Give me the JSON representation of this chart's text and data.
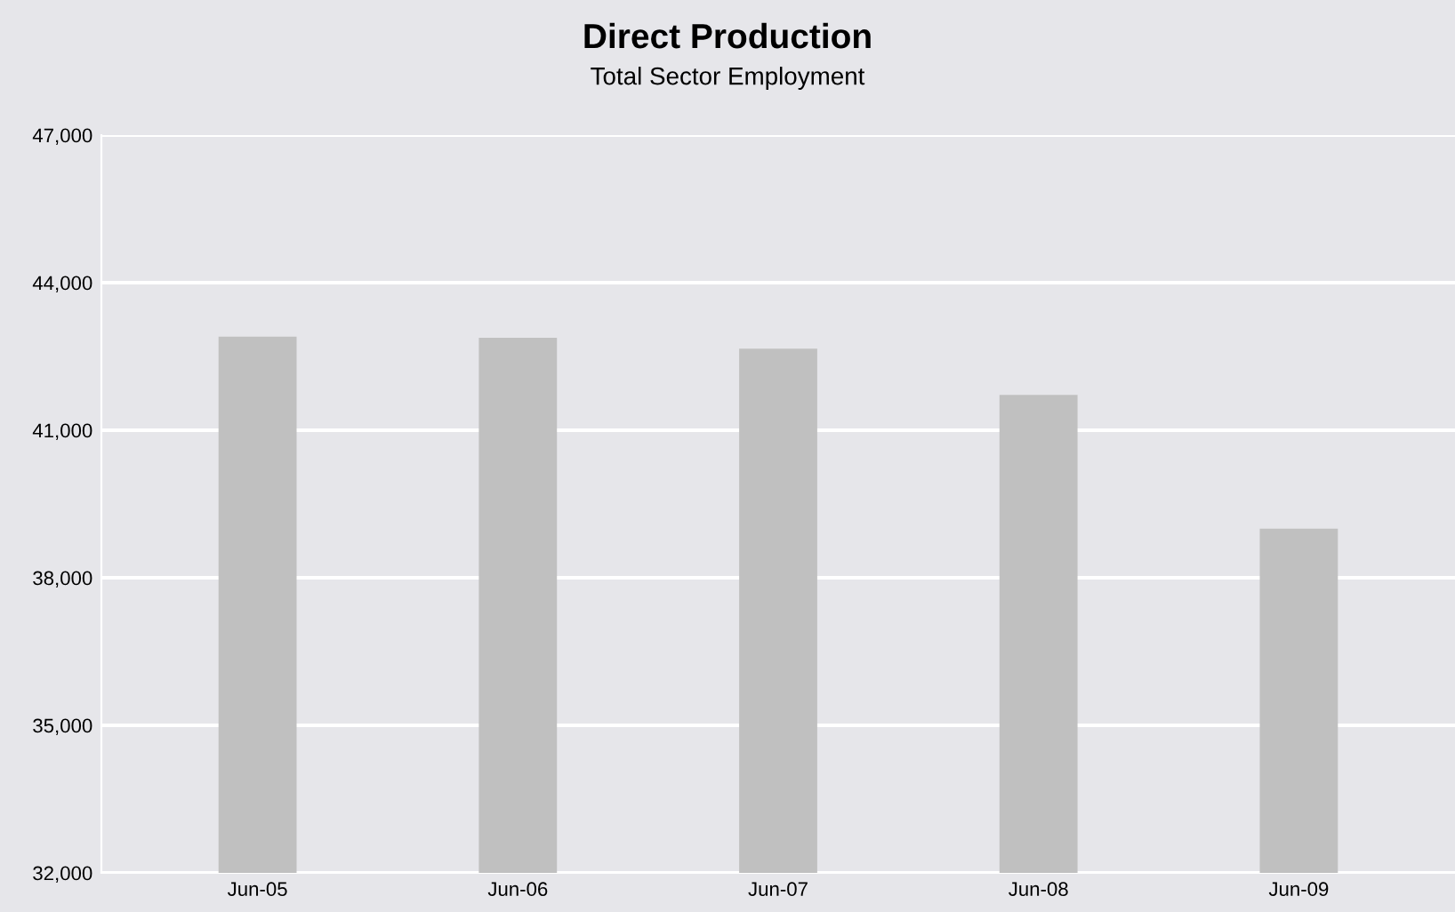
{
  "chart_data": {
    "type": "bar",
    "title": "Direct Production",
    "subtitle": "Total Sector Employment",
    "categories": [
      "Jun-05",
      "Jun-06",
      "Jun-07",
      "Jun-08",
      "Jun-09"
    ],
    "values": [
      42900,
      42880,
      42660,
      41720,
      39000
    ],
    "color": "#c0c0c0",
    "ylim": [
      32000,
      47000
    ],
    "yticks": [
      {
        "value": 32000,
        "label": "32,000"
      },
      {
        "value": 35000,
        "label": "35,000"
      },
      {
        "value": 38000,
        "label": "38,000"
      },
      {
        "value": 41000,
        "label": "41,000"
      },
      {
        "value": 44000,
        "label": "44,000"
      },
      {
        "value": 47000,
        "label": "47,000"
      }
    ],
    "grid": "y"
  }
}
